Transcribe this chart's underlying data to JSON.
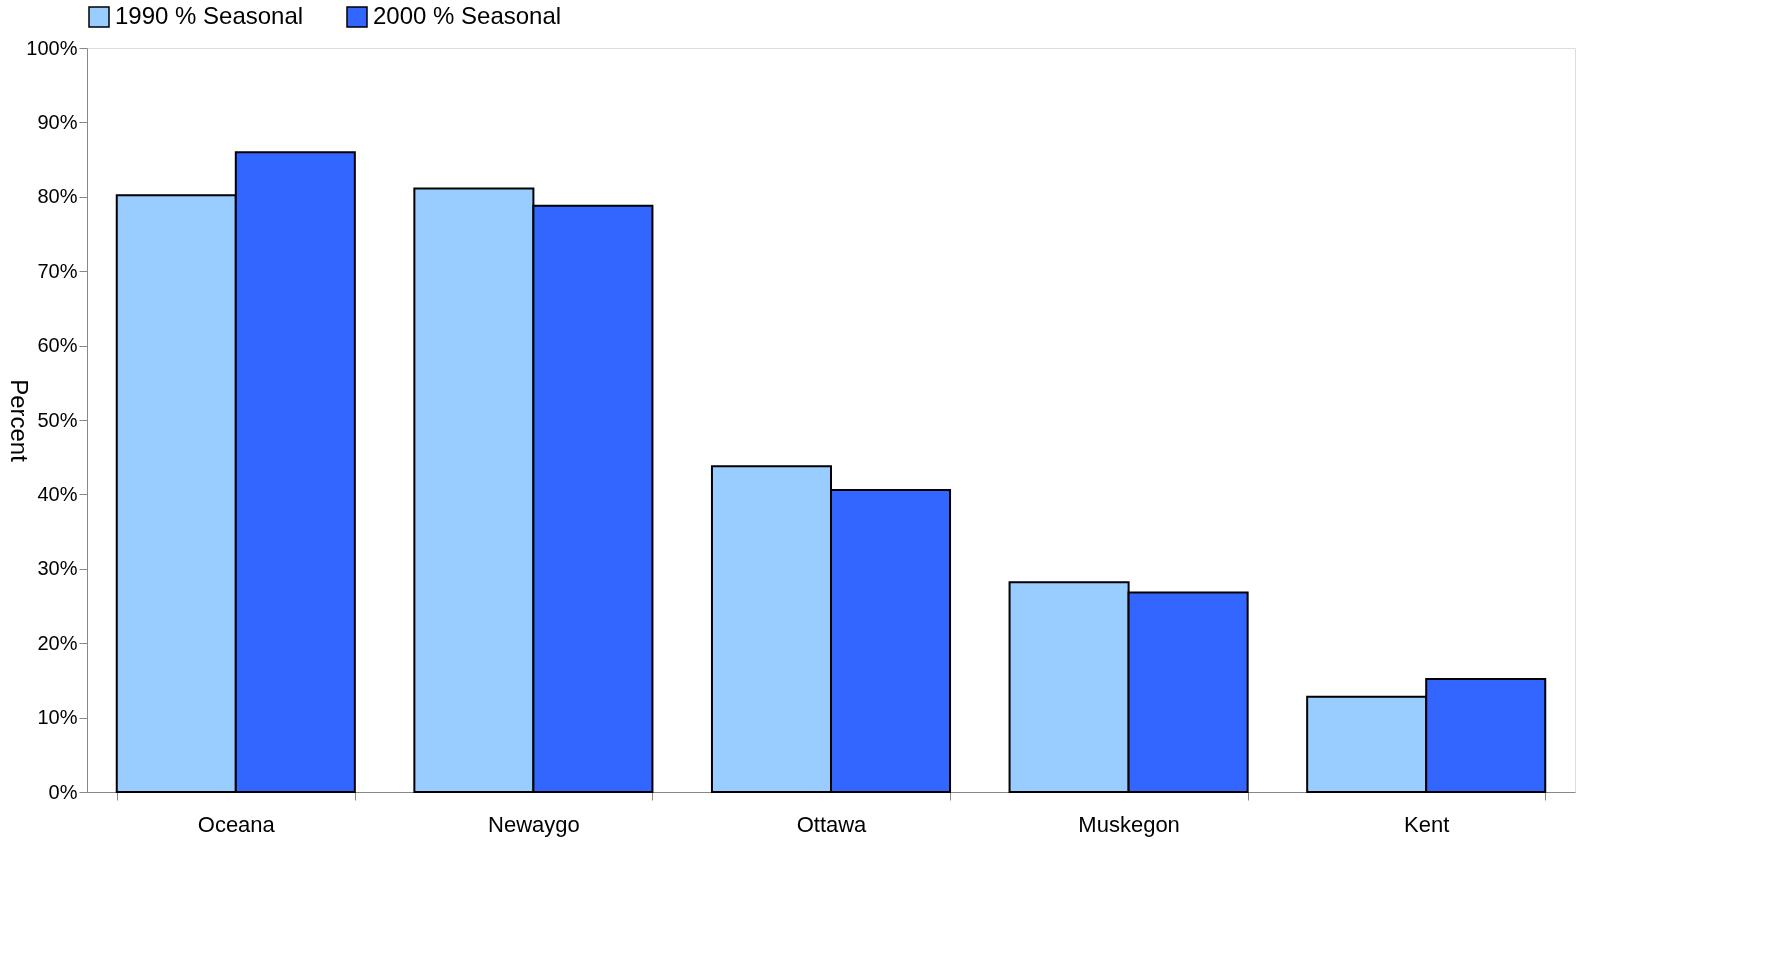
{
  "chart_data": {
    "type": "bar",
    "ylabel": "Percent",
    "categories": [
      "Oceana",
      "Newaygo",
      "Ottawa",
      "Muskegon",
      "Kent"
    ],
    "series": [
      {
        "name": "1990 % Seasonal",
        "color": "#99ccff",
        "values": [
          80.2,
          81.1,
          43.8,
          28.2,
          12.8
        ]
      },
      {
        "name": "2000 % Seasonal",
        "color": "#3366ff",
        "values": [
          86.0,
          78.8,
          40.6,
          26.8,
          15.2
        ]
      }
    ],
    "ylim": [
      0,
      100
    ],
    "yticks": [
      {
        "value": 0,
        "label": "0%"
      },
      {
        "value": 10,
        "label": "10%"
      },
      {
        "value": 20,
        "label": "20%"
      },
      {
        "value": 30,
        "label": "30%"
      },
      {
        "value": 40,
        "label": "40%"
      },
      {
        "value": 50,
        "label": "50%"
      },
      {
        "value": 60,
        "label": "60%"
      },
      {
        "value": 70,
        "label": "70%"
      },
      {
        "value": 80,
        "label": "80%"
      },
      {
        "value": 90,
        "label": "90%"
      },
      {
        "value": 100,
        "label": "100%"
      }
    ],
    "grid": false,
    "legend": "top"
  }
}
